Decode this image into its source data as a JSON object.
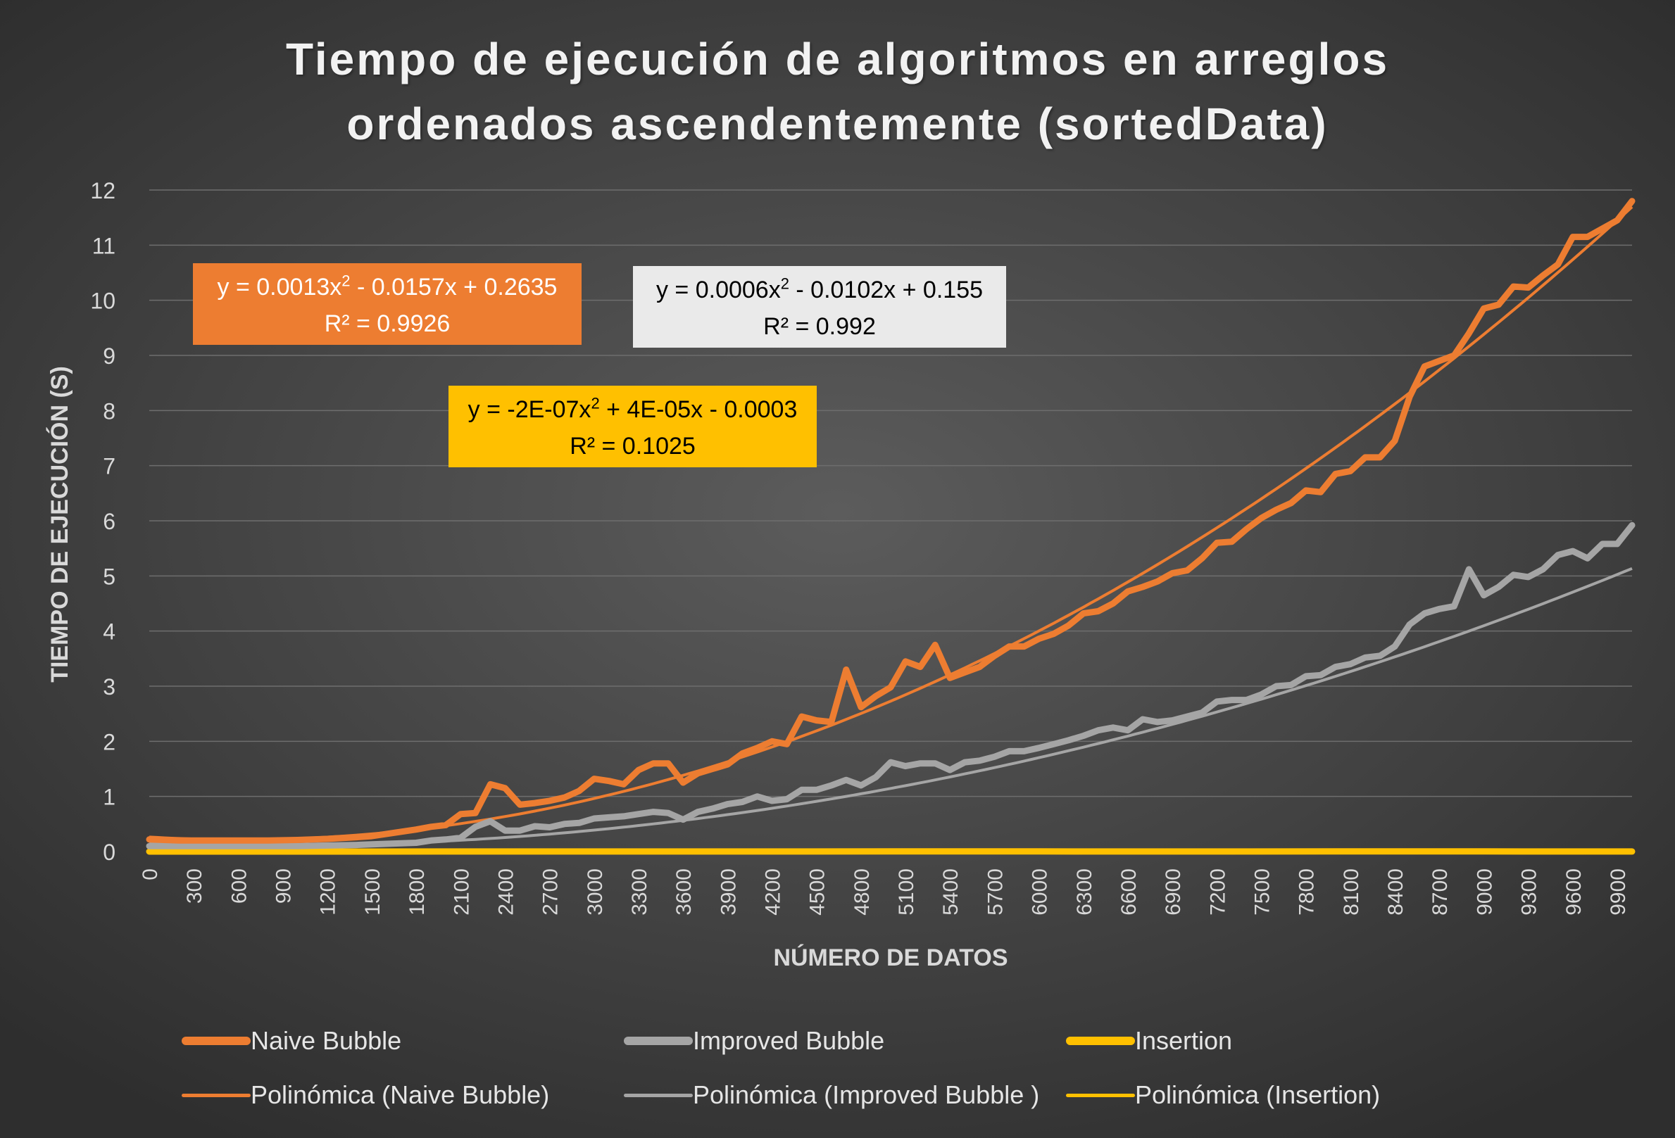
{
  "chart_data": {
    "type": "line",
    "title": [
      "Tiempo de ejecución de algoritmos en arreglos",
      "ordenados ascendentemente (sortedData)"
    ],
    "xlabel": "NÚMERO DE DATOS",
    "ylabel": "TIEMPO DE EJECUCIÓN (S)",
    "xlim": [
      0,
      10000
    ],
    "ylim": [
      0,
      12
    ],
    "x_ticks": [
      0,
      300,
      600,
      900,
      1200,
      1500,
      1800,
      2100,
      2400,
      2700,
      3000,
      3300,
      3600,
      3900,
      4200,
      4500,
      4800,
      5100,
      5400,
      5700,
      6000,
      6300,
      6600,
      6900,
      7200,
      7500,
      7800,
      8100,
      8400,
      8700,
      9000,
      9300,
      9600,
      9900
    ],
    "y_ticks": [
      0,
      1,
      2,
      3,
      4,
      5,
      6,
      7,
      8,
      9,
      10,
      11,
      12
    ],
    "grid": true,
    "legend_position": "bottom",
    "colors": {
      "naive": "#ed7d31",
      "improved": "#a5a5a5",
      "insertion": "#ffc000"
    },
    "series": [
      {
        "name": "Naive Bubble",
        "x": [
          0,
          200,
          400,
          600,
          800,
          1000,
          1200,
          1400,
          1500,
          1600,
          1700,
          1800,
          1900,
          2000,
          2100,
          2200,
          2300,
          2400,
          2500,
          2600,
          2700,
          2800,
          2900,
          3000,
          3100,
          3200,
          3300,
          3400,
          3500,
          3600,
          3700,
          3800,
          3900,
          4000,
          4100,
          4200,
          4300,
          4400,
          4500,
          4600,
          4700,
          4800,
          4900,
          5000,
          5100,
          5200,
          5300,
          5400,
          5500,
          5600,
          5700,
          5800,
          5900,
          6000,
          6100,
          6200,
          6300,
          6400,
          6500,
          6600,
          6700,
          6800,
          6900,
          7000,
          7100,
          7200,
          7300,
          7400,
          7500,
          7600,
          7700,
          7800,
          7900,
          8000,
          8100,
          8200,
          8300,
          8400,
          8500,
          8600,
          8700,
          8800,
          8900,
          9000,
          9100,
          9200,
          9300,
          9400,
          9500,
          9600,
          9700,
          9800,
          9900,
          10000
        ],
        "values": [
          0.22,
          0.2,
          0.2,
          0.2,
          0.2,
          0.21,
          0.23,
          0.26,
          0.28,
          0.32,
          0.36,
          0.4,
          0.45,
          0.48,
          0.68,
          0.7,
          1.22,
          1.15,
          0.85,
          0.88,
          0.92,
          0.98,
          1.1,
          1.32,
          1.28,
          1.22,
          1.48,
          1.6,
          1.6,
          1.25,
          1.42,
          1.5,
          1.58,
          1.78,
          1.88,
          2.0,
          1.95,
          2.45,
          2.38,
          2.35,
          3.3,
          2.62,
          2.82,
          2.98,
          3.45,
          3.35,
          3.75,
          3.15,
          3.25,
          3.35,
          3.55,
          3.72,
          3.72,
          3.86,
          3.95,
          4.1,
          4.32,
          4.36,
          4.5,
          4.72,
          4.8,
          4.9,
          5.05,
          5.1,
          5.32,
          5.6,
          5.62,
          5.85,
          6.05,
          6.2,
          6.32,
          6.55,
          6.52,
          6.85,
          6.9,
          7.15,
          7.15,
          7.45,
          8.25,
          8.8,
          8.9,
          9.0,
          9.4,
          9.85,
          9.92,
          10.25,
          10.23,
          10.45,
          10.65,
          11.15,
          11.15,
          11.3,
          11.45,
          11.8
        ]
      },
      {
        "name": "Improved Bubble",
        "x": [
          0,
          200,
          400,
          600,
          800,
          1000,
          1200,
          1400,
          1500,
          1600,
          1700,
          1800,
          1900,
          2000,
          2100,
          2200,
          2300,
          2400,
          2500,
          2600,
          2700,
          2800,
          2900,
          3000,
          3100,
          3200,
          3300,
          3400,
          3500,
          3600,
          3700,
          3800,
          3900,
          4000,
          4100,
          4200,
          4300,
          4400,
          4500,
          4600,
          4700,
          4800,
          4900,
          5000,
          5100,
          5200,
          5300,
          5400,
          5500,
          5600,
          5700,
          5800,
          5900,
          6000,
          6100,
          6200,
          6300,
          6400,
          6500,
          6600,
          6700,
          6800,
          6900,
          7000,
          7100,
          7200,
          7300,
          7400,
          7500,
          7600,
          7700,
          7800,
          7900,
          8000,
          8100,
          8200,
          8300,
          8400,
          8500,
          8600,
          8700,
          8800,
          8900,
          9000,
          9100,
          9200,
          9300,
          9400,
          9500,
          9600,
          9700,
          9800,
          9900,
          10000
        ],
        "values": [
          0.1,
          0.1,
          0.1,
          0.1,
          0.1,
          0.1,
          0.11,
          0.12,
          0.13,
          0.14,
          0.15,
          0.16,
          0.2,
          0.22,
          0.25,
          0.45,
          0.55,
          0.38,
          0.38,
          0.46,
          0.44,
          0.5,
          0.52,
          0.6,
          0.62,
          0.64,
          0.68,
          0.72,
          0.7,
          0.58,
          0.72,
          0.78,
          0.86,
          0.9,
          1.0,
          0.92,
          0.95,
          1.12,
          1.12,
          1.2,
          1.3,
          1.2,
          1.35,
          1.62,
          1.55,
          1.6,
          1.6,
          1.48,
          1.62,
          1.65,
          1.72,
          1.82,
          1.82,
          1.88,
          1.95,
          2.02,
          2.1,
          2.2,
          2.25,
          2.2,
          2.4,
          2.35,
          2.38,
          2.45,
          2.52,
          2.72,
          2.75,
          2.75,
          2.85,
          3.0,
          3.02,
          3.18,
          3.2,
          3.35,
          3.4,
          3.52,
          3.55,
          3.72,
          4.12,
          4.32,
          4.4,
          4.45,
          5.12,
          4.65,
          4.8,
          5.02,
          4.98,
          5.12,
          5.38,
          5.45,
          5.32,
          5.58,
          5.58,
          5.92
        ]
      },
      {
        "name": "Insertion",
        "x": [
          0,
          1000,
          2000,
          3000,
          4000,
          5000,
          6000,
          7000,
          8000,
          9000,
          10000
        ],
        "values": [
          0.0,
          0.0,
          0.001,
          0.001,
          0.001,
          0.002,
          0.002,
          0.001,
          0.002,
          0.002,
          0.001
        ]
      },
      {
        "name": "Polinómica (Naive Bubble)",
        "trendline": {
          "equation": "y = 0.0013x^2 - 0.0157x + 0.2635",
          "r2": "R² = 0.9926",
          "a": 0.0013,
          "b": -0.0157,
          "c": 0.2635,
          "index_step": 100
        }
      },
      {
        "name": "Polinómica (Improved Bubble )",
        "trendline": {
          "equation": "y = 0.0006x^2 - 0.0102x + 0.155",
          "r2": "R² = 0.992",
          "a": 0.0006,
          "b": -0.0102,
          "c": 0.155,
          "index_step": 100
        }
      },
      {
        "name": "Polinómica (Insertion)",
        "trendline": {
          "equation": "y = -2E-07x^2 + 4E-05x - 0.0003",
          "r2": "R² = 0.1025",
          "a": -2e-07,
          "b": 4e-05,
          "c": -0.0003,
          "index_step": 100
        }
      }
    ]
  },
  "annotations": {
    "naive": {
      "equation_prefix": "y = 0.0013x",
      "equation_suffix": " - 0.0157x + 0.2635",
      "sup": "2",
      "r2": "R² = 0.9926"
    },
    "improved": {
      "equation_prefix": "y = 0.0006x",
      "equation_suffix": " - 0.0102x + 0.155",
      "sup": "2",
      "r2": "R² = 0.992"
    },
    "insertion": {
      "equation_prefix": "y = -2E-07x",
      "equation_suffix": " + 4E-05x - 0.0003",
      "sup": "2",
      "r2": "R² = 0.1025"
    }
  }
}
